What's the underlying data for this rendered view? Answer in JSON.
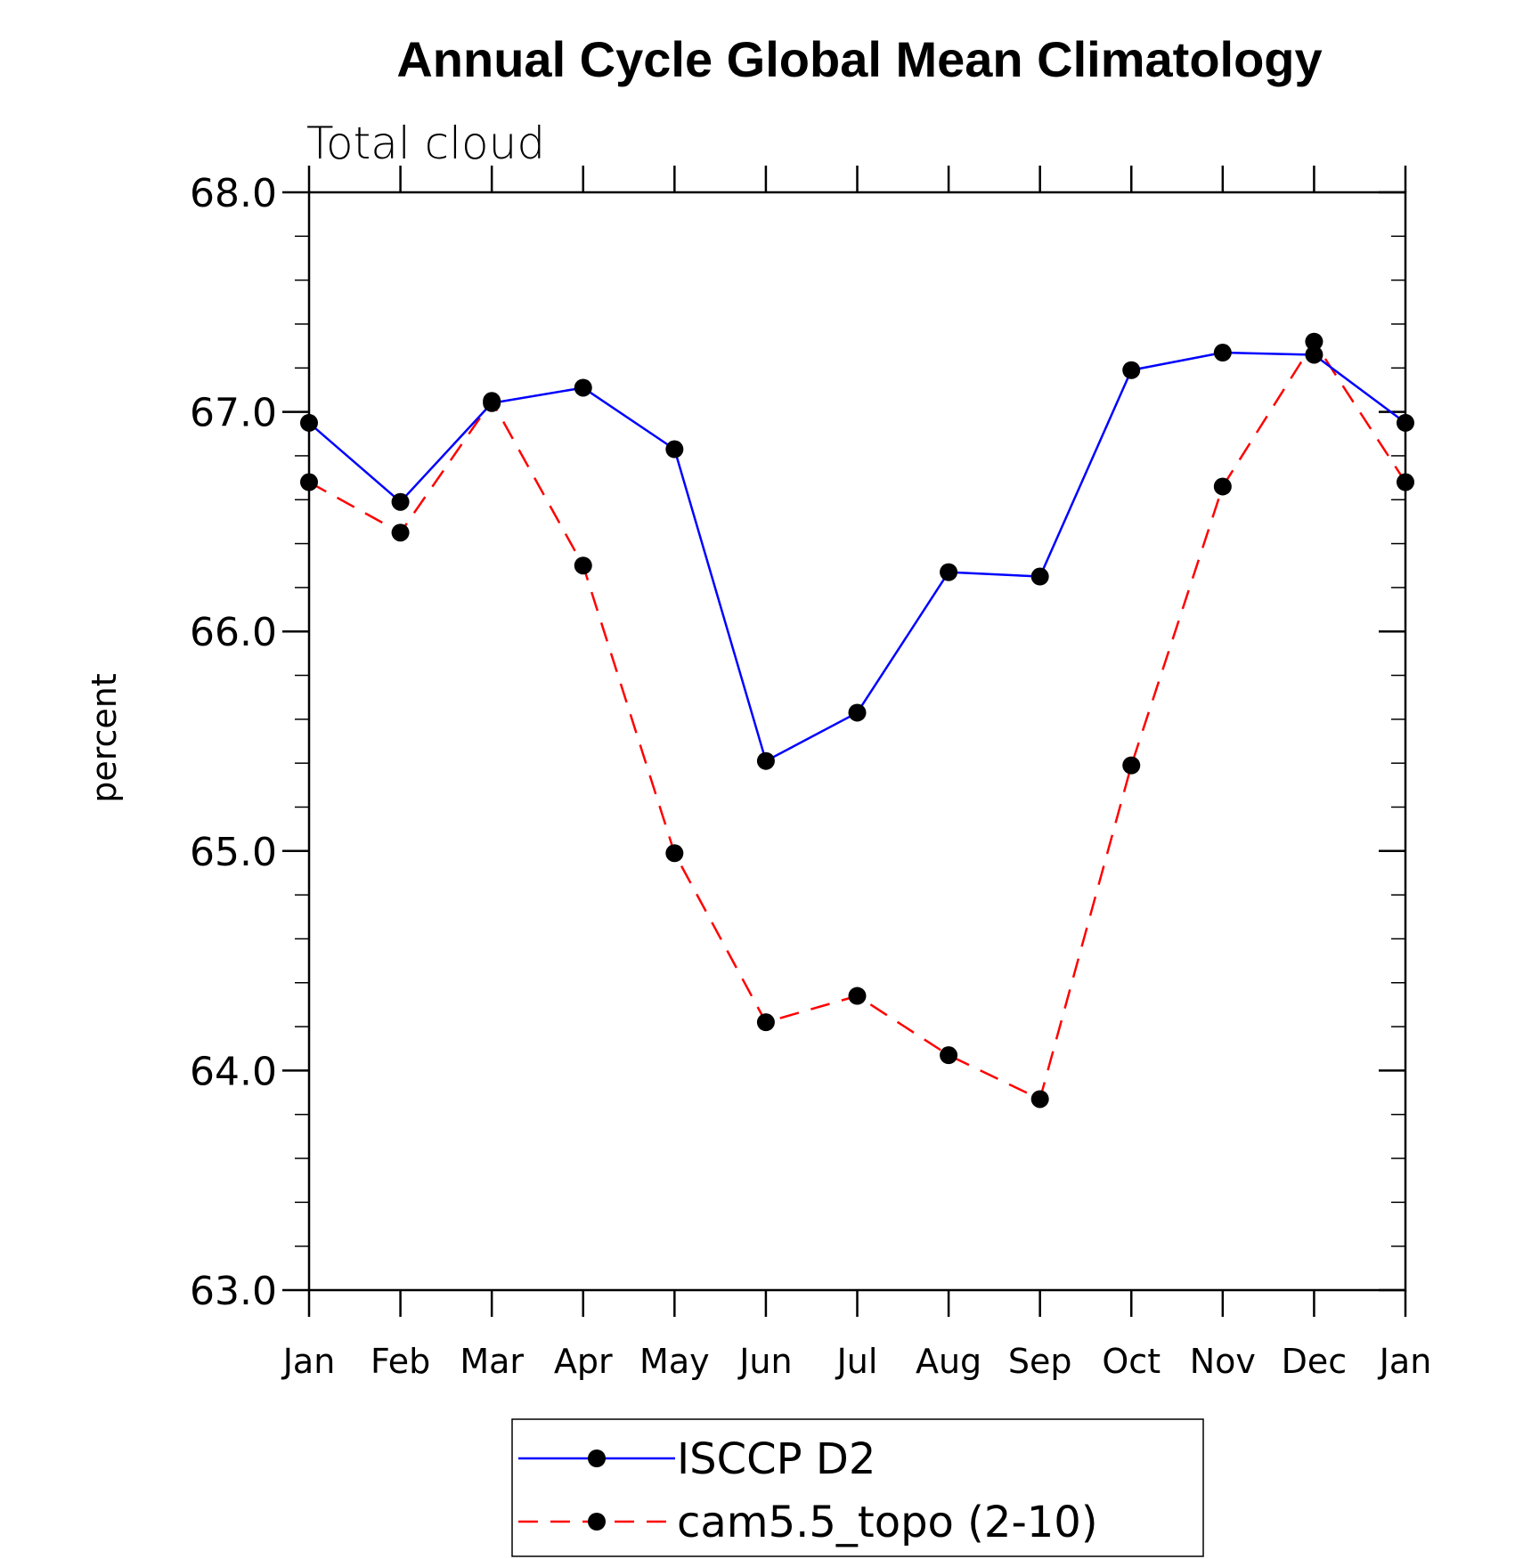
{
  "chart_data": {
    "type": "line",
    "title": "Annual Cycle Global Mean Climatology",
    "subtitle": "Total cloud",
    "xlabel": "",
    "ylabel": "percent",
    "categories": [
      "Jan",
      "Feb",
      "Mar",
      "Apr",
      "May",
      "Jun",
      "Jul",
      "Aug",
      "Sep",
      "Oct",
      "Nov",
      "Dec",
      "Jan"
    ],
    "ylim": [
      63.0,
      68.0
    ],
    "yticks": [
      "63.0",
      "64.0",
      "65.0",
      "66.0",
      "67.0",
      "68.0"
    ],
    "grid": false,
    "legend_position": "bottom-center",
    "series": [
      {
        "name": "ISCCP D2",
        "color": "#0000ff",
        "dash": "solid",
        "marker": "filled-circle",
        "values": [
          66.95,
          66.59,
          67.04,
          67.11,
          66.83,
          65.41,
          65.63,
          66.27,
          66.25,
          67.19,
          67.27,
          67.26,
          66.95
        ]
      },
      {
        "name": "cam5.5_topo (2-10)",
        "color": "#ff0000",
        "dash": "dashed",
        "marker": "filled-circle",
        "values": [
          66.68,
          66.45,
          67.05,
          66.3,
          64.99,
          64.22,
          64.34,
          64.07,
          63.87,
          65.39,
          66.66,
          67.32,
          66.68
        ]
      }
    ]
  }
}
